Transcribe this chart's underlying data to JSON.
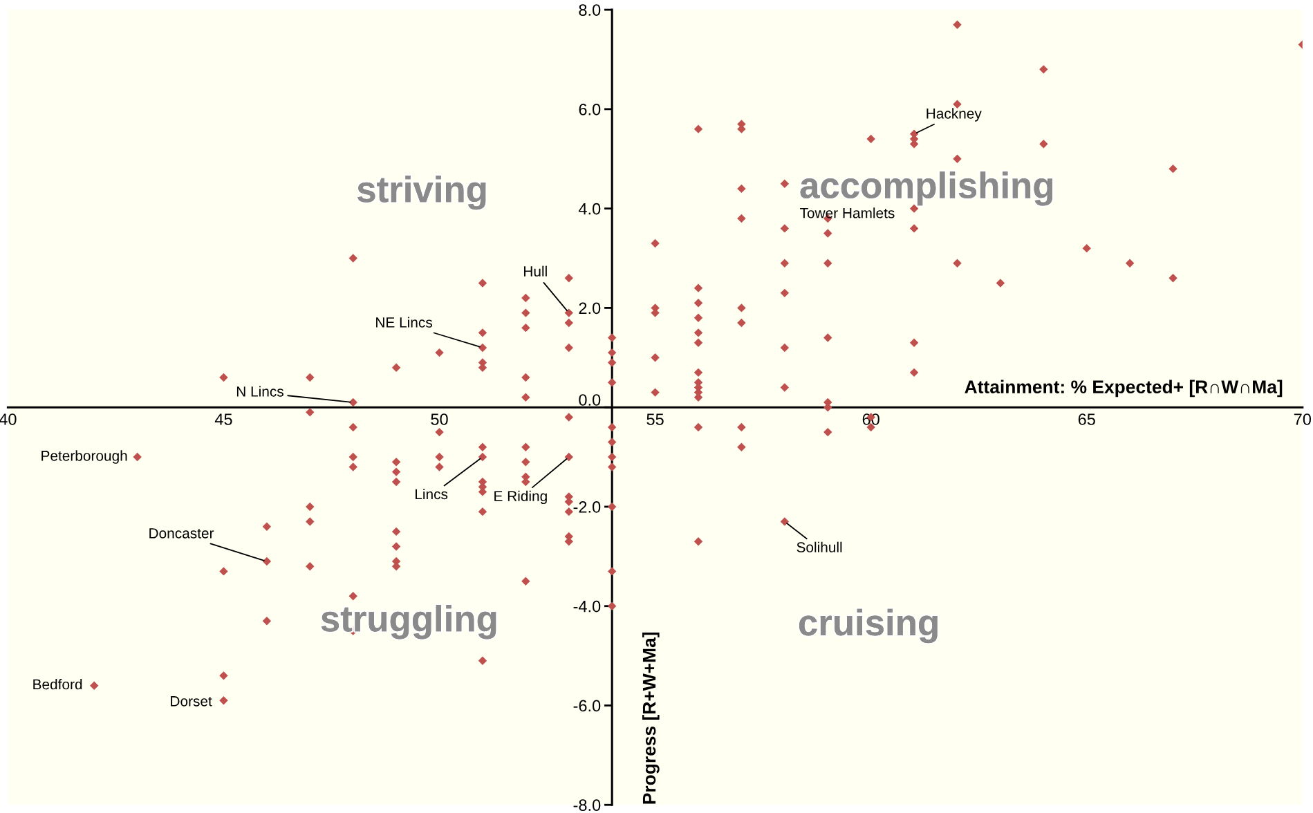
{
  "chart_data": {
    "type": "scatter",
    "xlabel": "Attainment: % Expected+ [R∩W∩Ma]",
    "ylabel": "Progress [R+W+Ma]",
    "x": [
      42,
      43,
      45,
      45,
      45,
      45,
      46,
      46,
      46,
      47,
      47,
      47,
      47,
      47,
      48,
      48,
      48,
      48,
      48,
      48,
      48,
      49,
      49,
      49,
      49,
      49,
      49,
      49,
      49,
      50,
      50,
      50,
      50,
      51,
      51,
      51,
      51,
      51,
      51,
      51,
      51,
      51,
      51,
      51,
      51,
      52,
      52,
      52,
      52,
      52,
      52,
      52,
      52,
      52,
      52,
      53,
      53,
      53,
      53,
      53,
      53,
      53,
      53,
      53,
      53,
      53,
      54,
      54,
      54,
      54,
      54,
      54,
      54,
      54,
      54,
      54,
      54,
      55,
      55,
      55,
      55,
      55,
      56,
      56,
      56,
      56,
      56,
      56,
      56,
      56,
      56,
      56,
      56,
      56,
      56,
      57,
      57,
      57,
      57,
      57,
      57,
      57,
      57,
      58,
      58,
      58,
      58,
      58,
      58,
      58,
      59,
      59,
      59,
      59,
      59,
      59,
      59,
      60,
      60,
      60,
      61,
      61,
      61,
      61,
      61,
      61,
      61,
      62,
      62,
      62,
      62,
      63,
      64,
      64,
      65,
      66,
      67,
      67,
      70
    ],
    "values": [
      -5.6,
      -1.0,
      0.6,
      -3.3,
      -5.4,
      -5.9,
      -2.4,
      -3.1,
      -4.3,
      0.6,
      -0.1,
      -2.0,
      -2.3,
      -3.2,
      3.0,
      0.1,
      -0.4,
      -1.0,
      -1.2,
      -3.8,
      -4.5,
      0.8,
      -1.1,
      -1.3,
      -1.5,
      -2.5,
      -2.8,
      -3.1,
      -3.2,
      1.1,
      -0.5,
      -1.0,
      -1.2,
      2.5,
      1.5,
      1.2,
      0.9,
      0.8,
      -0.8,
      -1.0,
      -1.5,
      -1.6,
      -1.7,
      -2.1,
      -5.1,
      2.2,
      1.9,
      1.6,
      0.6,
      0.2,
      -0.8,
      -1.1,
      -1.4,
      -1.5,
      -3.5,
      2.6,
      1.9,
      1.7,
      1.2,
      -0.2,
      -1.0,
      -1.8,
      -1.9,
      -2.1,
      -2.6,
      -2.7,
      1.4,
      1.1,
      0.9,
      0.5,
      -0.4,
      -0.7,
      -1.0,
      -1.2,
      -2.0,
      -3.3,
      -4.0,
      3.3,
      2.0,
      1.9,
      1.0,
      0.3,
      5.6,
      2.4,
      2.1,
      1.8,
      1.5,
      1.3,
      0.7,
      0.5,
      0.4,
      0.3,
      0.2,
      -0.4,
      -2.7,
      5.7,
      5.6,
      4.4,
      3.8,
      2.0,
      1.7,
      -0.4,
      -0.8,
      4.5,
      3.6,
      2.9,
      2.3,
      1.2,
      0.4,
      -2.3,
      3.8,
      3.5,
      2.9,
      1.4,
      0.1,
      0.0,
      -0.5,
      5.4,
      -0.2,
      -0.4,
      5.5,
      5.4,
      5.3,
      4.0,
      3.6,
      1.3,
      0.7,
      7.7,
      6.1,
      5.0,
      2.9,
      2.5,
      6.8,
      5.3,
      3.2,
      2.9,
      4.8,
      2.6,
      7.3
    ],
    "color": "#c0504d",
    "marker": "diamond",
    "xlim": [
      40,
      70
    ],
    "xticks": [
      40,
      45,
      50,
      55,
      60,
      65,
      70
    ],
    "ylim": [
      -8,
      8
    ],
    "yticks": [
      {
        "value": -8,
        "label": "-8.0"
      },
      {
        "value": -6,
        "label": "-6.0"
      },
      {
        "value": -4,
        "label": "-4.0"
      },
      {
        "value": -2,
        "label": "-2.0"
      },
      {
        "value": 0,
        "label": "0.0"
      },
      {
        "value": 2,
        "label": "2.0"
      },
      {
        "value": 4,
        "label": "4.0"
      },
      {
        "value": 6,
        "label": "6.0"
      },
      {
        "value": 8,
        "label": "8.0"
      }
    ],
    "grid": false,
    "annotations": [
      "striving",
      "accomplishing",
      "struggling",
      "cruising",
      {
        "text": "Hackney",
        "x": 61,
        "y": 5.5
      },
      {
        "text": "Tower Hamlets",
        "x": 61,
        "y": 4.0
      },
      {
        "text": "Hull",
        "x": 53,
        "y": 1.9
      },
      {
        "text": "NE Lincs",
        "x": 51,
        "y": 1.2
      },
      {
        "text": "N Lincs",
        "x": 48,
        "y": 0.1
      },
      {
        "text": "Peterborough",
        "x": 43,
        "y": -1.0
      },
      {
        "text": "Lincs",
        "x": 51,
        "y": -1.0
      },
      {
        "text": "E Riding",
        "x": 53,
        "y": -1.0
      },
      {
        "text": "Doncaster",
        "x": 46,
        "y": -3.1
      },
      {
        "text": "Solihull",
        "x": 58,
        "y": -2.3
      },
      {
        "text": "Bedford",
        "x": 42,
        "y": -5.6
      },
      {
        "text": "Dorset",
        "x": 45,
        "y": -5.9
      }
    ]
  }
}
